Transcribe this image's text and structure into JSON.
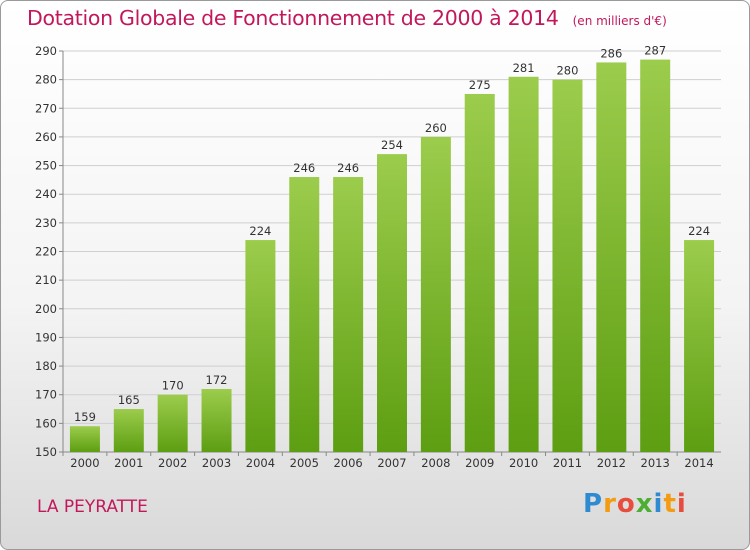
{
  "chart_data": {
    "type": "bar",
    "title": "Dotation Globale de Fonctionnement de 2000 à 2014",
    "unit": "(en milliers d'€)",
    "categories": [
      "2000",
      "2001",
      "2002",
      "2003",
      "2004",
      "2005",
      "2006",
      "2007",
      "2008",
      "2009",
      "2010",
      "2011",
      "2012",
      "2013",
      "2014"
    ],
    "values": [
      159,
      165,
      170,
      172,
      224,
      246,
      246,
      254,
      260,
      275,
      281,
      280,
      286,
      287,
      224
    ],
    "ylim": [
      150,
      290
    ],
    "yticks": [
      150,
      160,
      170,
      180,
      190,
      200,
      210,
      220,
      230,
      240,
      250,
      260,
      270,
      280,
      290
    ],
    "grid": true,
    "bar_color_top": "#9ccc4c",
    "bar_color_bottom": "#5d9e12"
  },
  "commune": "LA PEYRATTE",
  "logo": {
    "letters": [
      "P",
      "r",
      "o",
      "x",
      "i",
      "t",
      "i"
    ],
    "colors": [
      "#2e8bd1",
      "#f39c12",
      "#e74c3c",
      "#4cae33",
      "#2e8bd1",
      "#f39c12",
      "#e74c3c"
    ]
  },
  "colors": {
    "accent": "#c2185b",
    "grid": "#cfcfcf"
  }
}
